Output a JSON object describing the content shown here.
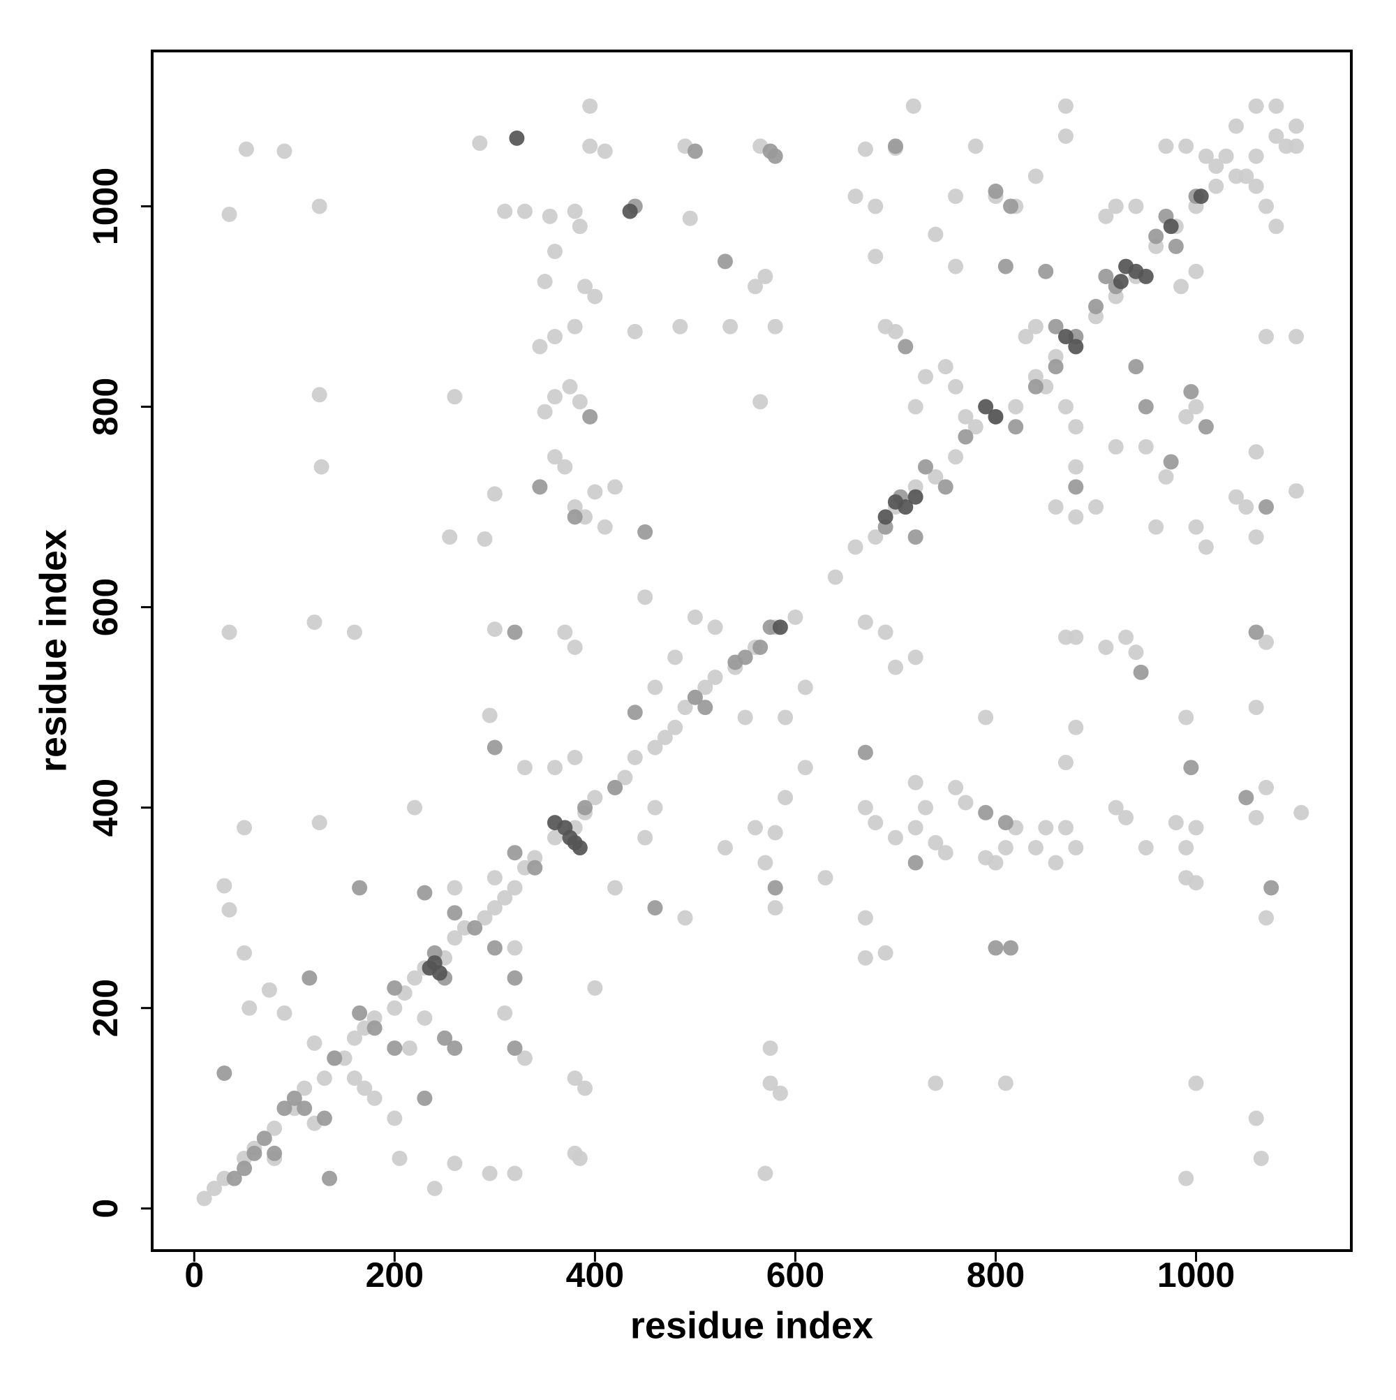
{
  "chart_data": {
    "type": "scatter",
    "xlabel": "residue index",
    "ylabel": "residue index",
    "xlim": [
      -42,
      1155
    ],
    "ylim": [
      -42,
      1155
    ],
    "xticks": [
      0,
      200,
      400,
      600,
      800,
      1000
    ],
    "yticks": [
      0,
      200,
      400,
      600,
      800,
      1000
    ],
    "grid": false,
    "series": [
      {
        "color": "#cccccc",
        "x": [
          10,
          20,
          30,
          50,
          60,
          80,
          100,
          110,
          130,
          150,
          160,
          170,
          180,
          200,
          210,
          220,
          230,
          250,
          260,
          270,
          290,
          300,
          310,
          320,
          330,
          340,
          360,
          380,
          390,
          400,
          420,
          430,
          440,
          460,
          470,
          480,
          490,
          500,
          510,
          520,
          540,
          560,
          580,
          600,
          640,
          660,
          680,
          700,
          720,
          740,
          760,
          780,
          800,
          820,
          840,
          860,
          880,
          900,
          920,
          940,
          960,
          980,
          1000,
          1020,
          1040,
          1060,
          1080,
          1100
        ],
        "values": [
          10,
          20,
          30,
          50,
          60,
          80,
          100,
          120,
          130,
          150,
          170,
          180,
          190,
          200,
          215,
          230,
          240,
          250,
          270,
          280,
          290,
          300,
          310,
          320,
          340,
          350,
          370,
          380,
          395,
          410,
          420,
          430,
          450,
          460,
          470,
          480,
          500,
          510,
          520,
          530,
          540,
          560,
          580,
          590,
          630,
          660,
          670,
          700,
          720,
          730,
          750,
          780,
          790,
          800,
          830,
          850,
          870,
          890,
          910,
          930,
          960,
          980,
          1000,
          1020,
          1030,
          1050,
          1070,
          1060
        ]
      },
      {
        "color": "#cccccc",
        "x": [
          52,
          90,
          35,
          125,
          125,
          127,
          35,
          120,
          160,
          50,
          125,
          30,
          35,
          50,
          55,
          75,
          90,
          120,
          140,
          160,
          170,
          180,
          120,
          80,
          200,
          205,
          240,
          260,
          295,
          320,
          380,
          385,
          380,
          390,
          330,
          310,
          320,
          300,
          260,
          220,
          295,
          300,
          300,
          290,
          255,
          260,
          285,
          310,
          330,
          355,
          380,
          385,
          395,
          410,
          395,
          345,
          360,
          380,
          350,
          360,
          375,
          385,
          360,
          370,
          380,
          390,
          400,
          420,
          410,
          390,
          400,
          350,
          360,
          440,
          485,
          535,
          560,
          570,
          580,
          565,
          490,
          495,
          565,
          230,
          215
        ],
        "values": [
          1057,
          1055,
          992,
          1000,
          812,
          740,
          575,
          585,
          575,
          380,
          385,
          322,
          298,
          255,
          200,
          218,
          195,
          165,
          150,
          130,
          120,
          110,
          85,
          50,
          90,
          50,
          20,
          45,
          35,
          35,
          55,
          50,
          130,
          120,
          150,
          195,
          260,
          330,
          320,
          400,
          492,
          578,
          713,
          668,
          670,
          810,
          1063,
          995,
          995,
          990,
          995,
          980,
          1060,
          1055,
          1100,
          860,
          870,
          880,
          795,
          810,
          820,
          805,
          750,
          740,
          700,
          690,
          715,
          720,
          680,
          920,
          910,
          925,
          955,
          875,
          880,
          880,
          920,
          930,
          880,
          805,
          1060,
          988,
          1060,
          190,
          160
        ]
      },
      {
        "color": "#cccccc",
        "x": [
          670,
          700,
          718,
          660,
          680,
          740,
          760,
          760,
          780,
          800,
          820,
          680,
          690,
          700,
          720,
          730,
          750,
          760,
          770,
          830,
          840,
          850,
          870,
          880,
          880,
          860,
          880,
          900,
          920,
          950,
          960,
          970,
          990,
          1000,
          1000,
          1010,
          1040,
          1050,
          1060,
          1060,
          1070,
          1100,
          1100,
          1000,
          985,
          920,
          910,
          940,
          970,
          990,
          1030,
          1050,
          1060,
          1070,
          1080,
          1090,
          1060,
          1080,
          1100,
          1040,
          1020,
          1010,
          840,
          870,
          870
        ],
        "values": [
          1057,
          1058,
          1100,
          1010,
          1000,
          972,
          940,
          1010,
          1060,
          1010,
          1000,
          950,
          880,
          875,
          800,
          830,
          840,
          820,
          790,
          870,
          880,
          820,
          800,
          780,
          740,
          700,
          690,
          700,
          760,
          760,
          680,
          730,
          790,
          800,
          680,
          660,
          710,
          700,
          670,
          755,
          870,
          870,
          716,
          935,
          920,
          1000,
          990,
          1000,
          1060,
          1060,
          1050,
          1030,
          1020,
          1000,
          980,
          1060,
          1100,
          1100,
          1080,
          1080,
          1040,
          1050,
          1030,
          1100,
          1070
        ]
      },
      {
        "color": "#cccccc",
        "x": [
          670,
          690,
          670,
          670,
          680,
          700,
          720,
          730,
          720,
          740,
          750,
          760,
          770,
          790,
          790,
          800,
          810,
          820,
          840,
          850,
          860,
          870,
          880,
          870,
          880,
          870,
          880,
          910,
          930,
          940,
          950,
          920,
          930,
          980,
          990,
          1000,
          990,
          1000,
          990,
          1060,
          1070,
          1105,
          1060,
          1070,
          1070,
          1060,
          1065,
          990,
          1000,
          810,
          740,
          690,
          700,
          720,
          670,
          575,
          575,
          585,
          570,
          580,
          570,
          580,
          590,
          560,
          530,
          490,
          460,
          450,
          420,
          400,
          380,
          370,
          380,
          360,
          330,
          450,
          460,
          480,
          500,
          520,
          610,
          610,
          630,
          550,
          590
        ],
        "values": [
          250,
          255,
          290,
          400,
          385,
          370,
          380,
          400,
          425,
          365,
          355,
          420,
          405,
          490,
          350,
          345,
          360,
          380,
          360,
          380,
          345,
          380,
          360,
          445,
          480,
          570,
          570,
          560,
          570,
          555,
          360,
          400,
          390,
          385,
          360,
          380,
          330,
          325,
          490,
          390,
          420,
          395,
          500,
          565,
          290,
          90,
          50,
          30,
          125,
          125,
          125,
          575,
          540,
          550,
          585,
          160,
          125,
          115,
          35,
          300,
          345,
          375,
          410,
          380,
          360,
          290,
          400,
          370,
          320,
          220,
          560,
          575,
          450,
          440,
          440,
          610,
          520,
          550,
          590,
          580,
          440,
          520,
          330,
          490,
          490
        ]
      },
      {
        "color": "#999999",
        "x": [
          50,
          60,
          40,
          70,
          80,
          100,
          110,
          90,
          130,
          135,
          30,
          115,
          165,
          200,
          180,
          165,
          140,
          250,
          250,
          260,
          230,
          230,
          260,
          280,
          300,
          320,
          320,
          340,
          390,
          420,
          440,
          450,
          440,
          500,
          510,
          540,
          550,
          565,
          575,
          575,
          580,
          395,
          380,
          345,
          705,
          690,
          720,
          730,
          750,
          770,
          820,
          840,
          860,
          860,
          880,
          900,
          910,
          920,
          960,
          970,
          980,
          1000,
          800,
          815,
          810,
          850,
          880,
          710,
          700,
          940,
          950,
          995,
          1010,
          975,
          1070,
          1060,
          1050,
          1075,
          995,
          945,
          810,
          790,
          815,
          720,
          670,
          580,
          460,
          320,
          320,
          300,
          800,
          530,
          500,
          240,
          200
        ],
        "values": [
          40,
          55,
          30,
          70,
          55,
          110,
          100,
          100,
          90,
          30,
          135,
          230,
          320,
          220,
          180,
          195,
          150,
          230,
          170,
          160,
          110,
          315,
          295,
          280,
          260,
          230,
          355,
          340,
          400,
          420,
          495,
          675,
          1000,
          510,
          500,
          545,
          550,
          560,
          580,
          1055,
          1050,
          790,
          690,
          720,
          710,
          680,
          670,
          740,
          720,
          770,
          780,
          820,
          840,
          880,
          870,
          900,
          930,
          920,
          970,
          990,
          960,
          1010,
          1015,
          1000,
          940,
          935,
          720,
          860,
          1060,
          840,
          800,
          815,
          780,
          745,
          700,
          575,
          410,
          320,
          440,
          535,
          385,
          395,
          260,
          345,
          455,
          320,
          300,
          575,
          160,
          460,
          260,
          945,
          1055,
          255,
          160
        ]
      },
      {
        "color": "#555555",
        "x": [
          240,
          235,
          245,
          370,
          375,
          380,
          360,
          385,
          930,
          925,
          940,
          950,
          690,
          710,
          720,
          870,
          880,
          790,
          800,
          975,
          1005,
          435,
          322,
          585,
          700
        ],
        "values": [
          245,
          240,
          235,
          380,
          370,
          365,
          385,
          360,
          940,
          925,
          935,
          930,
          690,
          700,
          710,
          870,
          860,
          800,
          790,
          980,
          1010,
          995,
          1068,
          580,
          705
        ]
      }
    ]
  }
}
